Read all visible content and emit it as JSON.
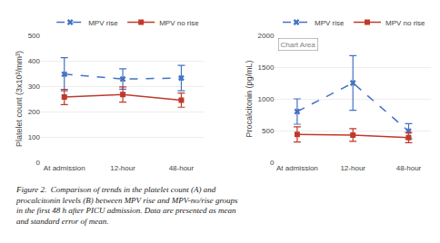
{
  "chart_data": [
    {
      "type": "line",
      "categories": [
        "At admission",
        "12-hour",
        "48-hour"
      ],
      "ylabel": "Platelet count (3x10³/mm³)",
      "ylim": [
        0,
        500
      ],
      "yticks": [
        0,
        100,
        200,
        300,
        400,
        500
      ],
      "grid": true,
      "legend": "upper right",
      "series": [
        {
          "name": "MPV rise",
          "color": "#4472C4",
          "line_style": "dashed",
          "marker": "x",
          "values": [
            347,
            328,
            332
          ],
          "errors": [
            65,
            40,
            50
          ]
        },
        {
          "name": "MPV no rise",
          "color": "#C0392B",
          "line_style": "solid",
          "marker": "square",
          "values": [
            257,
            267,
            245
          ],
          "errors": [
            30,
            30,
            28
          ]
        }
      ]
    },
    {
      "type": "line",
      "categories": [
        "At admission",
        "12-hour",
        "48-hour"
      ],
      "ylabel": "Procalcitonin (pg/mL)",
      "ylim": [
        0,
        2000
      ],
      "yticks": [
        0,
        500,
        1000,
        1500,
        2000
      ],
      "grid": true,
      "legend": "upper right",
      "annotations": [
        {
          "text": "Chart Area"
        }
      ],
      "series": [
        {
          "name": "MPV rise",
          "color": "#4472C4",
          "line_style": "dashed",
          "marker": "x",
          "values": [
            800,
            1250,
            490
          ],
          "errors": [
            200,
            430,
            120
          ]
        },
        {
          "name": "MPV no rise",
          "color": "#C0392B",
          "line_style": "solid",
          "marker": "square",
          "values": [
            440,
            430,
            390
          ],
          "errors": [
            120,
            100,
            80
          ]
        }
      ]
    }
  ],
  "caption": "Figure 2.  Comparison of trends in the platelet count (A) and\nprocalcitonin levels (B) between MPV rise and MPV-no/rise groups\nin the first 48 h after PICU admission. Data are presented as mean\nand standard error of mean."
}
